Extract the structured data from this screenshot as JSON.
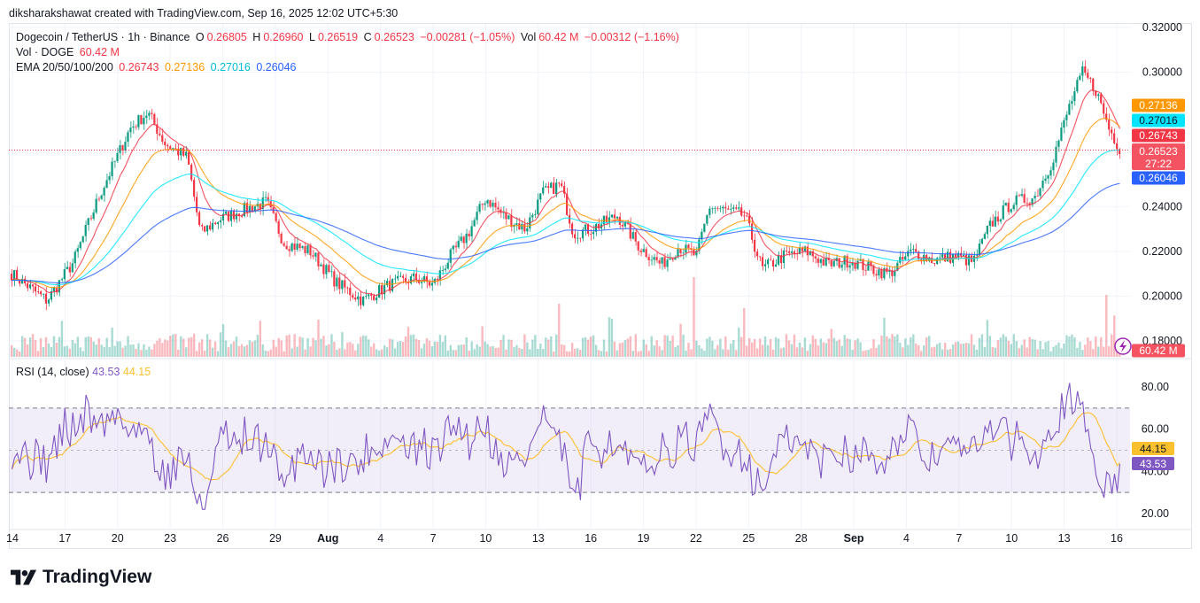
{
  "header": {
    "credit": "diksharakshawat created with TradingView.com, Sep 16, 2025 12:02 UTC+5:30"
  },
  "legend": {
    "symbol": "Dogecoin / TetherUS · 1h · Binance",
    "o_label": "O",
    "o": "0.26805",
    "h_label": "H",
    "h": "0.26960",
    "l_label": "L",
    "l": "0.26519",
    "c_label": "C",
    "c": "0.26523",
    "change": "−0.00281 (−1.05%)",
    "vol_label": "Vol",
    "vol": "60.42 M",
    "vol_change": "−0.00312 (−1.16%)",
    "vol_line_label": "Vol · DOGE",
    "vol_line_value": "60.42 M",
    "ema_label": "EMA 20/50/100/200",
    "ema20": "0.26743",
    "ema50": "0.27136",
    "ema100": "0.27016",
    "ema200": "0.26046"
  },
  "rsi_legend": {
    "label": "RSI (14, close)",
    "rsi": "43.53",
    "ma": "44.15"
  },
  "footer": {
    "brand": "TradingView"
  },
  "colors": {
    "up": "#089981",
    "down": "#f23645",
    "ema20": "#f23645",
    "ema50": "#ff9800",
    "ema100": "#00e5ff",
    "ema200": "#2962ff",
    "rsi": "#7e57c2",
    "rsi_ma": "#fbc02d",
    "band": "#7e57c2"
  },
  "chart_data": [
    {
      "type": "candlestick",
      "yaxis_ticks": [
        "0.32000",
        "0.30000",
        "0.24000",
        "0.22000",
        "0.20000",
        "0.18000"
      ],
      "ylim": [
        0.178,
        0.322
      ],
      "xaxis_ticks": [
        "14",
        "17",
        "20",
        "23",
        "26",
        "29",
        "Aug",
        "4",
        "7",
        "10",
        "13",
        "16",
        "19",
        "22",
        "25",
        "28",
        "Sep",
        "4",
        "7",
        "10",
        "13",
        "16"
      ],
      "price_path": [
        [
          0,
          0.21
        ],
        [
          40,
          0.198
        ],
        [
          70,
          0.215
        ],
        [
          100,
          0.245
        ],
        [
          135,
          0.275
        ],
        [
          155,
          0.282
        ],
        [
          175,
          0.268
        ],
        [
          200,
          0.262
        ],
        [
          215,
          0.228
        ],
        [
          235,
          0.234
        ],
        [
          260,
          0.238
        ],
        [
          290,
          0.242
        ],
        [
          310,
          0.224
        ],
        [
          340,
          0.22
        ],
        [
          370,
          0.206
        ],
        [
          400,
          0.198
        ],
        [
          430,
          0.205
        ],
        [
          460,
          0.208
        ],
        [
          480,
          0.205
        ],
        [
          500,
          0.218
        ],
        [
          520,
          0.228
        ],
        [
          540,
          0.244
        ],
        [
          560,
          0.236
        ],
        [
          585,
          0.23
        ],
        [
          605,
          0.246
        ],
        [
          625,
          0.25
        ],
        [
          640,
          0.228
        ],
        [
          660,
          0.23
        ],
        [
          690,
          0.236
        ],
        [
          715,
          0.222
        ],
        [
          740,
          0.214
        ],
        [
          760,
          0.222
        ],
        [
          780,
          0.218
        ],
        [
          795,
          0.24
        ],
        [
          815,
          0.238
        ],
        [
          835,
          0.236
        ],
        [
          855,
          0.212
        ],
        [
          880,
          0.218
        ],
        [
          905,
          0.22
        ],
        [
          930,
          0.214
        ],
        [
          955,
          0.216
        ],
        [
          980,
          0.212
        ],
        [
          1000,
          0.21
        ],
        [
          1025,
          0.22
        ],
        [
          1050,
          0.216
        ],
        [
          1075,
          0.218
        ],
        [
          1095,
          0.215
        ],
        [
          1115,
          0.232
        ],
        [
          1140,
          0.242
        ],
        [
          1165,
          0.244
        ],
        [
          1185,
          0.26
        ],
        [
          1205,
          0.285
        ],
        [
          1220,
          0.3
        ],
        [
          1235,
          0.292
        ],
        [
          1250,
          0.275
        ],
        [
          1262,
          0.266
        ]
      ],
      "last_price": "0.26523",
      "countdown": "27:22",
      "ema_labels": {
        "ema50": "0.27136",
        "ema100": "0.27016",
        "ema20": "0.26743",
        "ema200": "0.26046"
      },
      "volume_label": "60.42 M"
    },
    {
      "type": "line",
      "title": "RSI (14, close)",
      "yaxis_ticks": [
        "80.00",
        "60.00",
        "40.00",
        "20.00"
      ],
      "ylim": [
        15,
        90
      ],
      "band": [
        30,
        70
      ],
      "mid": 50,
      "last_rsi": "43.53",
      "last_ma": "44.15"
    }
  ]
}
